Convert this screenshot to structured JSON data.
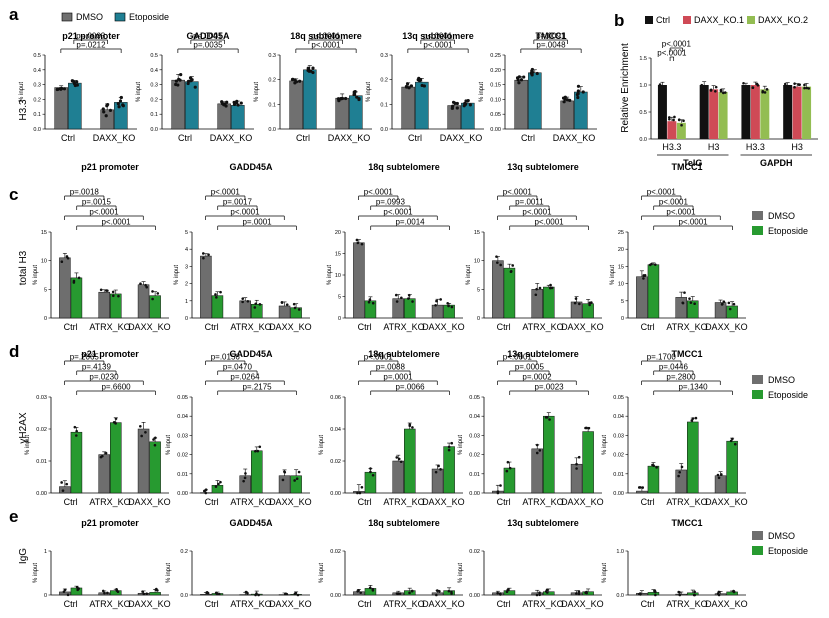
{
  "colors": {
    "a_dmso": "#707070",
    "a_eto": "#1f7f93",
    "cde_dmso": "#6e6e6e",
    "cde_eto": "#279a30",
    "ctrl": "#111111",
    "ko1": "#cf4a56",
    "ko2": "#93bd52",
    "dot": "#111111"
  },
  "panels": {
    "a": "a",
    "b": "b",
    "c": "c",
    "d": "d",
    "e": "e"
  },
  "legends": {
    "a": [
      "DMSO",
      "Etoposide"
    ],
    "b": [
      "Ctrl",
      "DAXX_KO.1",
      "DAXX_KO.2"
    ],
    "cde": [
      "DMSO",
      "Etoposide"
    ]
  },
  "row_labels": {
    "a": "H3.3",
    "b": "Relative Enrichment",
    "c": "total H3",
    "d": "γH2AX",
    "e": "IgG"
  },
  "sub_ylabel": "% input",
  "chart_data": [
    {
      "id": "a1",
      "type": "bar",
      "title": "p21 promoter",
      "categories": [
        "Ctrl",
        "DAXX_KO"
      ],
      "series": [
        {
          "name": "DMSO",
          "values": [
            0.28,
            0.13
          ]
        },
        {
          "name": "Etoposide",
          "values": [
            0.31,
            0.18
          ]
        }
      ],
      "ylim": [
        0,
        0.5
      ],
      "yticks": [
        "0.0",
        "0.1",
        "0.2",
        "0.3",
        "0.4",
        "0.5"
      ],
      "pvalues": [
        "p=.0003",
        "p=.0212"
      ]
    },
    {
      "id": "a2",
      "type": "bar",
      "title": "GADD45A",
      "categories": [
        "Ctrl",
        "DAXX_KO"
      ],
      "series": [
        {
          "name": "DMSO",
          "values": [
            0.33,
            0.17
          ]
        },
        {
          "name": "Etoposide",
          "values": [
            0.32,
            0.16
          ]
        }
      ],
      "ylim": [
        0,
        0.5
      ],
      "yticks": [
        "0.0",
        "0.1",
        "0.2",
        "0.3",
        "0.4",
        "0.5"
      ],
      "pvalues": [
        "p<.0001",
        "p=.0035"
      ]
    },
    {
      "id": "a3",
      "type": "bar",
      "title": "18q subtelomere",
      "categories": [
        "Ctrl",
        "DAXX_KO"
      ],
      "series": [
        {
          "name": "DMSO",
          "values": [
            0.195,
            0.125
          ]
        },
        {
          "name": "Etoposide",
          "values": [
            0.24,
            0.135
          ]
        }
      ],
      "ylim": [
        0,
        0.3
      ],
      "yticks": [
        "0.0",
        "0.1",
        "0.2",
        "0.3"
      ],
      "pvalues": [
        "p<.0001",
        "p<.0001"
      ]
    },
    {
      "id": "a4",
      "type": "bar",
      "title": "13q subtelomere",
      "categories": [
        "Ctrl",
        "DAXX_KO"
      ],
      "series": [
        {
          "name": "DMSO",
          "values": [
            0.17,
            0.095
          ]
        },
        {
          "name": "Etoposide",
          "values": [
            0.19,
            0.105
          ]
        }
      ],
      "ylim": [
        0,
        0.3
      ],
      "yticks": [
        "0.0",
        "0.1",
        "0.2",
        "0.3"
      ],
      "pvalues": [
        "p<.0001",
        "p<.0001"
      ]
    },
    {
      "id": "a5",
      "type": "bar",
      "title": "TMCC1",
      "categories": [
        "Ctrl",
        "DAXX_KO"
      ],
      "series": [
        {
          "name": "DMSO",
          "values": [
            0.165,
            0.095
          ]
        },
        {
          "name": "Etoposide",
          "values": [
            0.19,
            0.125
          ]
        }
      ],
      "ylim": [
        0,
        0.25
      ],
      "yticks": [
        "0.00",
        "0.05",
        "0.10",
        "0.15",
        "0.20",
        "0.25"
      ],
      "pvalues": [
        "p=.0091",
        "p=.0048"
      ]
    },
    {
      "id": "b",
      "type": "bar",
      "categories": [
        "H3.3",
        "H3",
        "H3.3",
        "H3"
      ],
      "groups": [
        "TelG",
        "GAPDH"
      ],
      "series": [
        {
          "name": "Ctrl",
          "values": [
            1,
            1,
            1,
            1
          ]
        },
        {
          "name": "DAXX_KO.1",
          "values": [
            0.33,
            0.92,
            1.0,
            0.97
          ]
        },
        {
          "name": "DAXX_KO.2",
          "values": [
            0.3,
            0.87,
            0.92,
            0.97
          ]
        }
      ],
      "ylim": [
        0,
        1.5
      ],
      "yticks": [
        "0.0",
        "0.5",
        "1.0",
        "1.5"
      ],
      "pvalues": [
        "p<.0001",
        "p<.0001"
      ]
    },
    {
      "id": "c1",
      "type": "bar",
      "title": "p21 promoter",
      "categories": [
        "Ctrl",
        "ATRX_KO",
        "DAXX_KO"
      ],
      "series": [
        {
          "name": "DMSO",
          "values": [
            10.5,
            4.5,
            5.8
          ]
        },
        {
          "name": "Etoposide",
          "values": [
            7.0,
            4.2,
            3.9
          ]
        }
      ],
      "ylim": [
        0,
        15
      ],
      "yticks": [
        "0",
        "5",
        "10",
        "15"
      ],
      "pvalues": [
        "p=.0018",
        "p=.0015",
        "p<.0001",
        "p<.0001"
      ]
    },
    {
      "id": "c2",
      "type": "bar",
      "title": "GADD45A",
      "categories": [
        "Ctrl",
        "ATRX_KO",
        "DAXX_KO"
      ],
      "series": [
        {
          "name": "DMSO",
          "values": [
            3.6,
            1.0,
            0.7
          ]
        },
        {
          "name": "Etoposide",
          "values": [
            1.3,
            0.8,
            0.6
          ]
        }
      ],
      "ylim": [
        0,
        5
      ],
      "yticks": [
        "0",
        "1",
        "2",
        "3",
        "4",
        "5"
      ],
      "pvalues": [
        "p<.0001",
        "p=.0017",
        "p<.0001",
        "p=.0001"
      ]
    },
    {
      "id": "c3",
      "type": "bar",
      "title": "18q subtelomere",
      "categories": [
        "Ctrl",
        "ATRX_KO",
        "DAXX_KO"
      ],
      "series": [
        {
          "name": "DMSO",
          "values": [
            17.5,
            4.5,
            3.0
          ]
        },
        {
          "name": "Etoposide",
          "values": [
            4.0,
            4.5,
            3.0
          ]
        }
      ],
      "ylim": [
        0,
        20
      ],
      "yticks": [
        "0",
        "5",
        "10",
        "15",
        "20"
      ],
      "pvalues": [
        "p<.0001",
        "p=.0993",
        "p<.0001",
        "p=.0014"
      ]
    },
    {
      "id": "c4",
      "type": "bar",
      "title": "13q subtelomere",
      "categories": [
        "Ctrl",
        "ATRX_KO",
        "DAXX_KO"
      ],
      "series": [
        {
          "name": "DMSO",
          "values": [
            10.0,
            5.0,
            2.8
          ]
        },
        {
          "name": "Etoposide",
          "values": [
            8.7,
            5.4,
            2.5
          ]
        }
      ],
      "ylim": [
        0,
        15
      ],
      "yticks": [
        "0",
        "5",
        "10",
        "15"
      ],
      "pvalues": [
        "p<.0001",
        "p=.0011",
        "p<.0001",
        "p<.0001"
      ]
    },
    {
      "id": "c5",
      "type": "bar",
      "title": "TMCC1",
      "categories": [
        "Ctrl",
        "ATRX_KO",
        "DAXX_KO"
      ],
      "series": [
        {
          "name": "DMSO",
          "values": [
            12.0,
            6.0,
            4.5
          ]
        },
        {
          "name": "Etoposide",
          "values": [
            15.5,
            5.0,
            3.5
          ]
        }
      ],
      "ylim": [
        0,
        25
      ],
      "yticks": [
        "0",
        "5",
        "10",
        "15",
        "20",
        "25"
      ],
      "pvalues": [
        "p<.0001",
        "p<.0001",
        "p<.0001",
        "p<.0001"
      ]
    },
    {
      "id": "d1",
      "type": "bar",
      "title": "p21 promoter",
      "categories": [
        "Ctrl",
        "ATRX_KO",
        "DAXX_KO"
      ],
      "series": [
        {
          "name": "DMSO",
          "values": [
            0.002,
            0.012,
            0.02
          ]
        },
        {
          "name": "Etoposide",
          "values": [
            0.019,
            0.022,
            0.016
          ]
        }
      ],
      "ylim": [
        0,
        0.03
      ],
      "yticks": [
        "0.00",
        "0.01",
        "0.02",
        "0.03"
      ],
      "pvalues": [
        "p=.2065",
        "p=.4139",
        "p=.0230",
        "p=.6600"
      ]
    },
    {
      "id": "d2",
      "type": "bar",
      "title": "GADD45A",
      "categories": [
        "Ctrl",
        "ATRX_KO",
        "DAXX_KO"
      ],
      "series": [
        {
          "name": "DMSO",
          "values": [
            0.0002,
            0.009,
            0.009
          ]
        },
        {
          "name": "Etoposide",
          "values": [
            0.004,
            0.022,
            0.009
          ]
        }
      ],
      "ylim": [
        0,
        0.05
      ],
      "yticks": [
        "0.00",
        "0.01",
        "0.02",
        "0.03",
        "0.04",
        "0.05"
      ],
      "pvalues": [
        "p=.0156",
        "p=.0470",
        "p=.0264",
        "p=.2175"
      ]
    },
    {
      "id": "d3",
      "type": "bar",
      "title": "18q subtelomere",
      "categories": [
        "Ctrl",
        "ATRX_KO",
        "DAXX_KO"
      ],
      "series": [
        {
          "name": "DMSO",
          "values": [
            0.001,
            0.02,
            0.015
          ]
        },
        {
          "name": "Etoposide",
          "values": [
            0.013,
            0.04,
            0.029
          ]
        }
      ],
      "ylim": [
        0,
        0.06
      ],
      "yticks": [
        "0.00",
        "0.02",
        "0.04",
        "0.06"
      ],
      "pvalues": [
        "p<.0001",
        "p=.0088",
        "p=.0001",
        "p=.0066"
      ]
    },
    {
      "id": "d4",
      "type": "bar",
      "title": "13q subtelomere",
      "categories": [
        "Ctrl",
        "ATRX_KO",
        "DAXX_KO"
      ],
      "series": [
        {
          "name": "DMSO",
          "values": [
            0.001,
            0.023,
            0.015
          ]
        },
        {
          "name": "Etoposide",
          "values": [
            0.013,
            0.04,
            0.032
          ]
        }
      ],
      "ylim": [
        0,
        0.05
      ],
      "yticks": [
        "0.00",
        "0.01",
        "0.02",
        "0.03",
        "0.04",
        "0.05"
      ],
      "pvalues": [
        "p<.0001",
        "p=.0005",
        "p=.0002",
        "p=.0023"
      ]
    },
    {
      "id": "d5",
      "type": "bar",
      "title": "TMCC1",
      "categories": [
        "Ctrl",
        "ATRX_KO",
        "DAXX_KO"
      ],
      "series": [
        {
          "name": "DMSO",
          "values": [
            0.001,
            0.012,
            0.009
          ]
        },
        {
          "name": "Etoposide",
          "values": [
            0.014,
            0.037,
            0.027
          ]
        }
      ],
      "ylim": [
        0,
        0.05
      ],
      "yticks": [
        "0.00",
        "0.01",
        "0.02",
        "0.03",
        "0.04",
        "0.05"
      ],
      "pvalues": [
        "p=.1700",
        "p=.0446",
        "p=.2800",
        "p=.1340"
      ]
    },
    {
      "id": "e1",
      "type": "bar",
      "title": "p21 promoter",
      "categories": [
        "Ctrl",
        "ATRX_KO",
        "DAXX_KO"
      ],
      "series": [
        {
          "name": "DMSO",
          "values": [
            0.07,
            0.05,
            0.04
          ]
        },
        {
          "name": "Etoposide",
          "values": [
            0.16,
            0.1,
            0.06
          ]
        }
      ],
      "ylim": [
        0,
        1
      ],
      "yticks": [
        "0",
        "1"
      ],
      "pvalues": []
    },
    {
      "id": "e2",
      "type": "bar",
      "title": "GADD45A",
      "categories": [
        "Ctrl",
        "ATRX_KO",
        "DAXX_KO"
      ],
      "series": [
        {
          "name": "DMSO",
          "values": [
            0.003,
            0.002,
            0.002
          ]
        },
        {
          "name": "Etoposide",
          "values": [
            0.007,
            0.004,
            0.003
          ]
        }
      ],
      "ylim": [
        0,
        0.2
      ],
      "yticks": [
        "0.0",
        "0.2"
      ],
      "pvalues": []
    },
    {
      "id": "e3",
      "type": "bar",
      "title": "18q subtelomere",
      "categories": [
        "Ctrl",
        "ATRX_KO",
        "DAXX_KO"
      ],
      "series": [
        {
          "name": "DMSO",
          "values": [
            0.0015,
            0.001,
            0.001
          ]
        },
        {
          "name": "Etoposide",
          "values": [
            0.003,
            0.002,
            0.002
          ]
        }
      ],
      "ylim": [
        0,
        0.02
      ],
      "yticks": [
        "0.00",
        "0.02"
      ],
      "pvalues": []
    },
    {
      "id": "e4",
      "type": "bar",
      "title": "13q subtelomere",
      "categories": [
        "Ctrl",
        "ATRX_KO",
        "DAXX_KO"
      ],
      "series": [
        {
          "name": "DMSO",
          "values": [
            0.001,
            0.001,
            0.001
          ]
        },
        {
          "name": "Etoposide",
          "values": [
            0.002,
            0.0015,
            0.0015
          ]
        }
      ],
      "ylim": [
        0,
        0.02
      ],
      "yticks": [
        "0.00",
        "0.02"
      ],
      "pvalues": []
    },
    {
      "id": "e5",
      "type": "bar",
      "title": "TMCC1",
      "categories": [
        "Ctrl",
        "ATRX_KO",
        "DAXX_KO"
      ],
      "series": [
        {
          "name": "DMSO",
          "values": [
            0.04,
            0.02,
            0.03
          ]
        },
        {
          "name": "Etoposide",
          "values": [
            0.06,
            0.05,
            0.07
          ]
        }
      ],
      "ylim": [
        0,
        1
      ],
      "yticks": [
        "0.0",
        "1.0"
      ],
      "pvalues": []
    }
  ]
}
